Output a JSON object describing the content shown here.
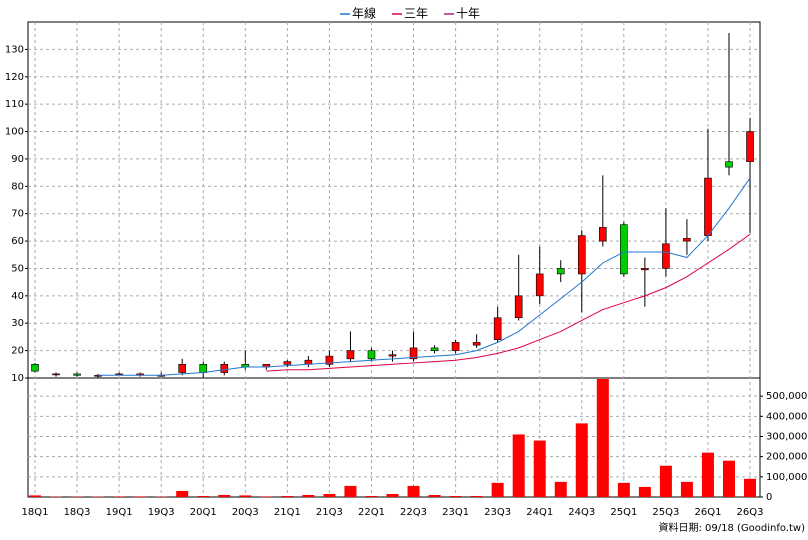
{
  "chart_data": [
    {
      "type": "candlestick",
      "categories": [
        "18Q1",
        null,
        "18Q3",
        null,
        "19Q1",
        null,
        "19Q3",
        null,
        "20Q1",
        null,
        "20Q3",
        null,
        "21Q1",
        null,
        "21Q3",
        null,
        "22Q1",
        null,
        "22Q3",
        null,
        "23Q1",
        null,
        "23Q3",
        null,
        "24Q1",
        null,
        "24Q3",
        null,
        "25Q1",
        null,
        "25Q3",
        null,
        "26Q1",
        null,
        "26Q3"
      ],
      "open": [
        15,
        11.5,
        11.5,
        11,
        11.5,
        11,
        11,
        12,
        15,
        12,
        15,
        14,
        15,
        15,
        15,
        17,
        20,
        18,
        17,
        21,
        20,
        22,
        24,
        32,
        40,
        50,
        48,
        60,
        66,
        49.5,
        50,
        60,
        62,
        89,
        89
      ],
      "high": [
        15.5,
        12,
        12,
        11.5,
        12,
        12,
        12,
        17,
        16,
        16,
        20,
        15,
        16.5,
        18,
        20,
        27,
        21,
        20,
        27,
        22,
        24,
        26,
        36,
        55,
        58,
        53,
        64,
        84,
        67,
        54,
        72,
        68,
        101,
        136,
        105
      ],
      "low": [
        12,
        10.5,
        10.5,
        10,
        11,
        10.5,
        10.5,
        11,
        10,
        11,
        13,
        13,
        14,
        14,
        14,
        16,
        16,
        16,
        16,
        19,
        19,
        21,
        23,
        31,
        37,
        45,
        34,
        58,
        47,
        36,
        47,
        55,
        60,
        84,
        63
      ],
      "close": [
        12.5,
        11.5,
        11,
        11,
        11.5,
        11.5,
        11,
        15,
        12,
        15,
        14,
        15,
        16,
        16.5,
        18,
        20,
        17,
        18.5,
        21,
        20,
        23,
        23,
        32,
        40,
        48,
        48,
        62,
        65,
        48,
        50,
        59,
        61,
        83,
        87,
        100
      ],
      "up_color": "#ff0000",
      "down_color": "#00cc00",
      "series": [
        {
          "name": "年線",
          "color": "#1f77d0",
          "values": [
            null,
            null,
            null,
            11,
            11,
            11,
            11,
            11.5,
            12,
            13,
            14,
            14,
            14.5,
            15,
            15.5,
            16,
            16.5,
            17,
            17.5,
            18,
            18.5,
            20,
            23,
            27,
            33,
            39,
            45,
            52,
            56,
            56,
            56,
            54,
            62,
            72,
            83
          ]
        },
        {
          "name": "三年",
          "color": "#e0003c",
          "values": [
            null,
            null,
            null,
            null,
            null,
            null,
            null,
            null,
            null,
            null,
            null,
            12.5,
            13,
            13,
            13.5,
            14,
            14.5,
            15,
            15.5,
            16,
            16.5,
            17.5,
            19,
            21,
            24,
            27,
            31,
            35,
            37.5,
            40,
            43,
            47,
            52,
            57,
            62.5
          ]
        },
        {
          "name": "十年",
          "color": "#b0207a",
          "values": [
            null,
            null,
            null,
            null,
            null,
            null,
            null,
            null,
            null,
            null,
            null,
            null,
            null,
            null,
            null,
            null,
            null,
            null,
            null,
            null,
            null,
            null,
            null,
            null,
            null,
            null,
            null,
            null,
            null,
            null,
            null,
            null,
            null,
            null,
            null
          ]
        }
      ],
      "ylim": [
        10,
        140
      ],
      "yticks": [
        10,
        20,
        30,
        40,
        50,
        60,
        70,
        80,
        90,
        100,
        110,
        120,
        130
      ],
      "grid": true
    },
    {
      "type": "bar",
      "values": [
        8000,
        2000,
        2000,
        2000,
        3000,
        3000,
        2000,
        30000,
        5000,
        10000,
        8000,
        3000,
        5000,
        10000,
        15000,
        55000,
        5000,
        15000,
        55000,
        10000,
        5000,
        5000,
        70000,
        310000,
        280000,
        75000,
        365000,
        585000,
        70000,
        50000,
        155000,
        75000,
        220000,
        180000,
        90000
      ],
      "color": "#ff0000",
      "ylim": [
        0,
        590000
      ],
      "yticks": [
        0,
        {
          "value": 100000,
          "label": "100,000"
        },
        {
          "value": 200000,
          "label": "200,000"
        },
        {
          "value": 300000,
          "label": "300,000"
        },
        {
          "value": 400000,
          "label": "400,000"
        },
        {
          "value": 500000,
          "label": "500,000"
        }
      ],
      "grid": true
    }
  ],
  "footer": "資料日期: 09/18 (Goodinfo.tw)"
}
